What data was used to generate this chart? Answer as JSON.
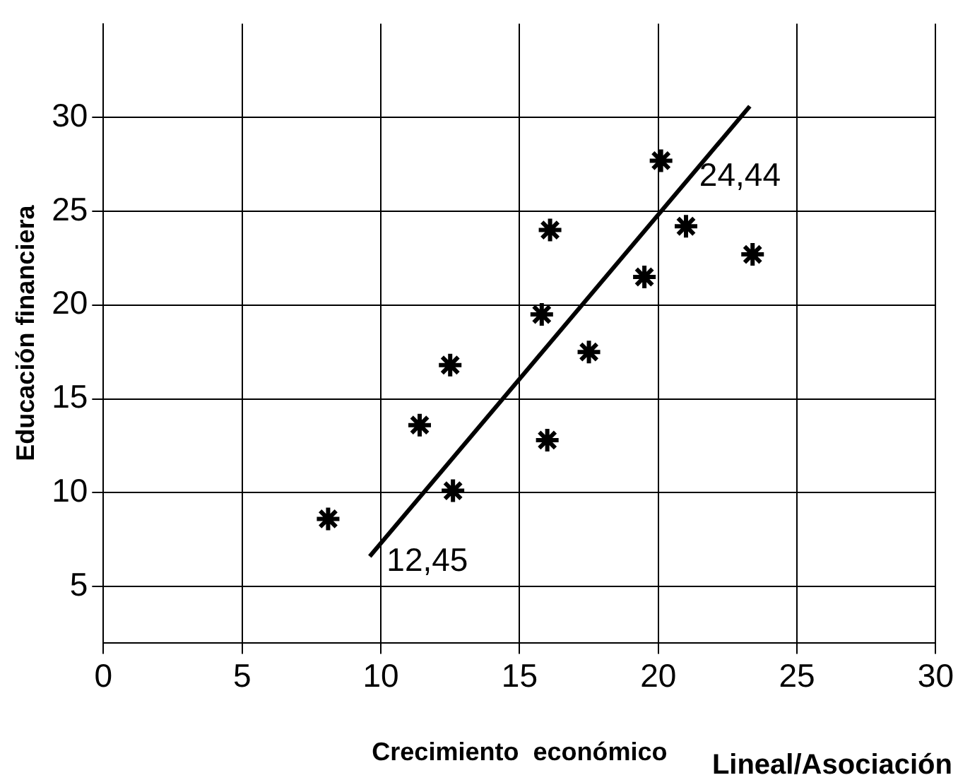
{
  "chart_data": {
    "type": "scatter",
    "xlabel": "Crecimiento  económico",
    "ylabel": "Educación financiera",
    "xlim": [
      0,
      30
    ],
    "xticks": [
      0,
      5,
      10,
      15,
      20,
      25,
      30
    ],
    "ylim": [
      2,
      35
    ],
    "yticks": [
      5,
      10,
      15,
      20,
      25,
      30
    ],
    "grid": true,
    "marker": "cross",
    "series": [
      {
        "color": "#000000",
        "x": [
          8.1,
          11.4,
          12.5,
          12.6,
          15.8,
          16.1,
          16.0,
          17.5,
          19.5,
          20.1,
          21.0,
          23.4
        ],
        "values": [
          8.6,
          13.6,
          16.8,
          10.1,
          19.5,
          24.0,
          12.8,
          17.5,
          21.5,
          27.7,
          24.2,
          22.7
        ]
      },
      {
        "type": "line",
        "color": "#000000",
        "marker": "none",
        "x": [
          9.6,
          23.3
        ],
        "values": [
          6.6,
          30.6
        ]
      }
    ],
    "annotations": [
      "24,44",
      "12,45",
      "Lineal/Asociación"
    ]
  }
}
